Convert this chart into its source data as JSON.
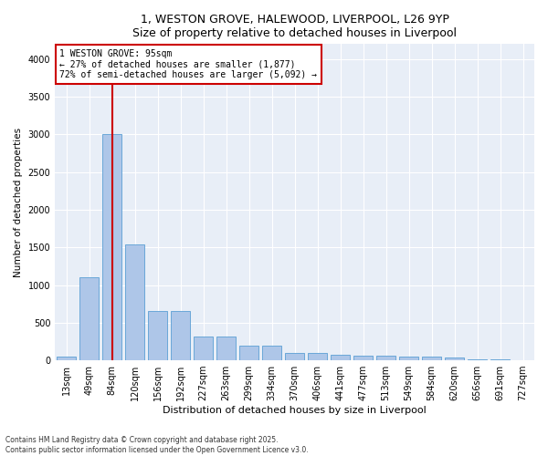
{
  "title_line1": "1, WESTON GROVE, HALEWOOD, LIVERPOOL, L26 9YP",
  "title_line2": "Size of property relative to detached houses in Liverpool",
  "xlabel": "Distribution of detached houses by size in Liverpool",
  "ylabel": "Number of detached properties",
  "categories": [
    "13sqm",
    "49sqm",
    "84sqm",
    "120sqm",
    "156sqm",
    "192sqm",
    "227sqm",
    "263sqm",
    "299sqm",
    "334sqm",
    "370sqm",
    "406sqm",
    "441sqm",
    "477sqm",
    "513sqm",
    "549sqm",
    "584sqm",
    "620sqm",
    "656sqm",
    "691sqm",
    "727sqm"
  ],
  "values": [
    50,
    1100,
    3000,
    1540,
    650,
    650,
    320,
    320,
    190,
    195,
    100,
    100,
    75,
    65,
    60,
    50,
    45,
    40,
    10,
    10,
    5
  ],
  "bar_color": "#aec6e8",
  "bar_edge_color": "#5a9fd4",
  "vline_color": "#cc0000",
  "annotation_title": "1 WESTON GROVE: 95sqm",
  "annotation_line2": "← 27% of detached houses are smaller (1,877)",
  "annotation_line3": "72% of semi-detached houses are larger (5,092) →",
  "annotation_box_color": "#ffffff",
  "annotation_box_edge": "#cc0000",
  "ylim": [
    0,
    4200
  ],
  "yticks": [
    0,
    500,
    1000,
    1500,
    2000,
    2500,
    3000,
    3500,
    4000
  ],
  "footnote1": "Contains HM Land Registry data © Crown copyright and database right 2025.",
  "footnote2": "Contains public sector information licensed under the Open Government Licence v3.0.",
  "bg_color": "#e8eef7",
  "fig_bg_color": "#ffffff",
  "title_fontsize": 9,
  "xlabel_fontsize": 8,
  "ylabel_fontsize": 7.5,
  "tick_fontsize": 7,
  "annot_fontsize": 7
}
